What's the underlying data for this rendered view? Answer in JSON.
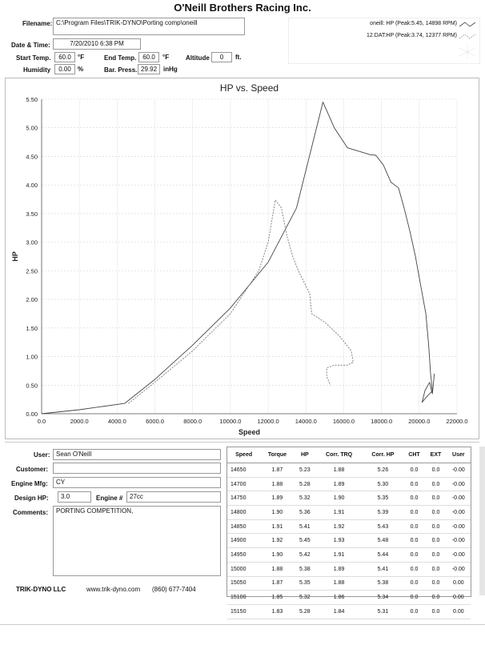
{
  "header": {
    "company": "O'Neill Brothers Racing Inc.",
    "filename_label": "Filename:",
    "filename": "C:\\Program Files\\TRIK-DYNO\\Porting comp\\oneill",
    "date_label": "Date & Time:",
    "date": "7/20/2010 6:38 PM",
    "start_temp_label": "Start Temp.",
    "start_temp": "60.0",
    "end_temp_label": "End Temp.",
    "end_temp": "60.0",
    "temp_unit": "°F",
    "altitude_label": "Altitude",
    "altitude": "0",
    "altitude_unit": "ft.",
    "humidity_label": "Humidity",
    "humidity": "0.00",
    "humidity_unit": "%",
    "pressure_label": "Bar. Press.",
    "pressure": "29.92",
    "pressure_unit": "inHg"
  },
  "legend": {
    "series1": "oneill: HP (Peak:5.45, 14898 RPM)",
    "series2": "12.DAT:HP (Peak:3.74, 12377 RPM)"
  },
  "chart_data": {
    "type": "line",
    "title": "HP vs. Speed",
    "xlabel": "Speed",
    "ylabel": "HP",
    "xlim": [
      0,
      22000
    ],
    "ylim": [
      0,
      5.5
    ],
    "x_ticks": [
      "0.0",
      "2000.0",
      "4000.0",
      "6000.0",
      "8000.0",
      "10000.0",
      "12000.0",
      "14000.0",
      "16000.0",
      "18000.0",
      "20000.0",
      "22000.0"
    ],
    "y_ticks": [
      "0.00",
      "0.50",
      "1.00",
      "1.50",
      "2.00",
      "2.50",
      "3.00",
      "3.50",
      "4.00",
      "4.50",
      "5.00",
      "5.50"
    ],
    "grid": true,
    "legend_position": "top-right",
    "series": [
      {
        "name": "oneill: HP (Peak:5.45, 14898 RPM)",
        "style": "solid",
        "color": "#444444",
        "points": [
          [
            0,
            0
          ],
          [
            2000,
            0.07
          ],
          [
            4400,
            0.18
          ],
          [
            6000,
            0.6
          ],
          [
            8000,
            1.2
          ],
          [
            10000,
            1.85
          ],
          [
            12000,
            2.65
          ],
          [
            13500,
            3.6
          ],
          [
            14898,
            5.45
          ],
          [
            15500,
            5.0
          ],
          [
            16200,
            4.65
          ],
          [
            16900,
            4.58
          ],
          [
            17400,
            4.53
          ],
          [
            17700,
            4.52
          ],
          [
            18100,
            4.35
          ],
          [
            18500,
            4.05
          ],
          [
            18900,
            3.95
          ],
          [
            19200,
            3.6
          ],
          [
            19500,
            3.2
          ],
          [
            19800,
            2.75
          ],
          [
            20100,
            2.2
          ],
          [
            20350,
            1.75
          ],
          [
            20500,
            1.2
          ],
          [
            20600,
            0.7
          ],
          [
            20700,
            0.4
          ],
          [
            20400,
            0.3
          ],
          [
            20150,
            0.2
          ],
          [
            20300,
            0.4
          ],
          [
            20550,
            0.55
          ],
          [
            20650,
            0.4
          ],
          [
            20700,
            0.35
          ],
          [
            20800,
            0.7
          ]
        ]
      },
      {
        "name": "12.DAT:HP (Peak:3.74, 12377 RPM)",
        "style": "dashed",
        "color": "#777777",
        "points": [
          [
            4600,
            0.18
          ],
          [
            6000,
            0.55
          ],
          [
            8000,
            1.1
          ],
          [
            10000,
            1.75
          ],
          [
            11500,
            2.5
          ],
          [
            12000,
            3.0
          ],
          [
            12377,
            3.74
          ],
          [
            12700,
            3.6
          ],
          [
            13000,
            3.1
          ],
          [
            13300,
            2.75
          ],
          [
            13600,
            2.5
          ],
          [
            14200,
            2.1
          ],
          [
            14300,
            1.75
          ],
          [
            15000,
            1.6
          ],
          [
            15800,
            1.35
          ],
          [
            16400,
            1.1
          ],
          [
            16500,
            0.9
          ],
          [
            16200,
            0.85
          ],
          [
            15500,
            0.85
          ],
          [
            15100,
            0.8
          ],
          [
            15100,
            0.65
          ],
          [
            15300,
            0.5
          ]
        ]
      }
    ]
  },
  "info": {
    "user_label": "User:",
    "user": "Sean O'Neill",
    "customer_label": "Customer:",
    "customer": "",
    "engine_mfg_label": "Engine Mfg:",
    "engine_mfg": "CY",
    "design_hp_label": "Design HP:",
    "design_hp": "3.0",
    "engine_num_label": "Engine #",
    "engine_num": "27cc",
    "comments_label": "Comments:",
    "comments": "PORTING COMPETITION,"
  },
  "footer": {
    "brand": "TRIK-DYNO LLC",
    "site": "www.trik-dyno.com",
    "phone": "(860) 677-7404"
  },
  "table": {
    "headers": [
      "Speed",
      "Torque",
      "HP",
      "Corr. TRQ",
      "Corr. HP",
      "CHT",
      "EXT",
      "User"
    ],
    "rows": [
      [
        "14650",
        "1.87",
        "5.23",
        "1.88",
        "5.26",
        "0.0",
        "0.0",
        "-0.00"
      ],
      [
        "14700",
        "1.88",
        "5.28",
        "1.89",
        "5.30",
        "0.0",
        "0.0",
        "-0.00"
      ],
      [
        "14750",
        "1.89",
        "5.32",
        "1.90",
        "5.35",
        "0.0",
        "0.0",
        "-0.00"
      ],
      [
        "14800",
        "1.90",
        "5.36",
        "1.91",
        "5.39",
        "0.0",
        "0.0",
        "-0.00"
      ],
      [
        "14850",
        "1.91",
        "5.41",
        "1.92",
        "5.43",
        "0.0",
        "0.0",
        "-0.00"
      ],
      [
        "14900",
        "1.92",
        "5.45",
        "1.93",
        "5.48",
        "0.0",
        "0.0",
        "-0.00"
      ],
      [
        "14950",
        "1.90",
        "5.42",
        "1.91",
        "5.44",
        "0.0",
        "0.0",
        "-0.00"
      ],
      [
        "15000",
        "1.88",
        "5.38",
        "1.89",
        "5.41",
        "0.0",
        "0.0",
        "-0.00"
      ],
      [
        "15050",
        "1.87",
        "5.35",
        "1.88",
        "5.38",
        "0.0",
        "0.0",
        "0.00"
      ],
      [
        "15100",
        "1.85",
        "5.32",
        "1.86",
        "5.34",
        "0.0",
        "0.0",
        "0.00"
      ],
      [
        "15150",
        "1.83",
        "5.28",
        "1.84",
        "5.31",
        "0.0",
        "0.0",
        "0.00"
      ]
    ]
  }
}
